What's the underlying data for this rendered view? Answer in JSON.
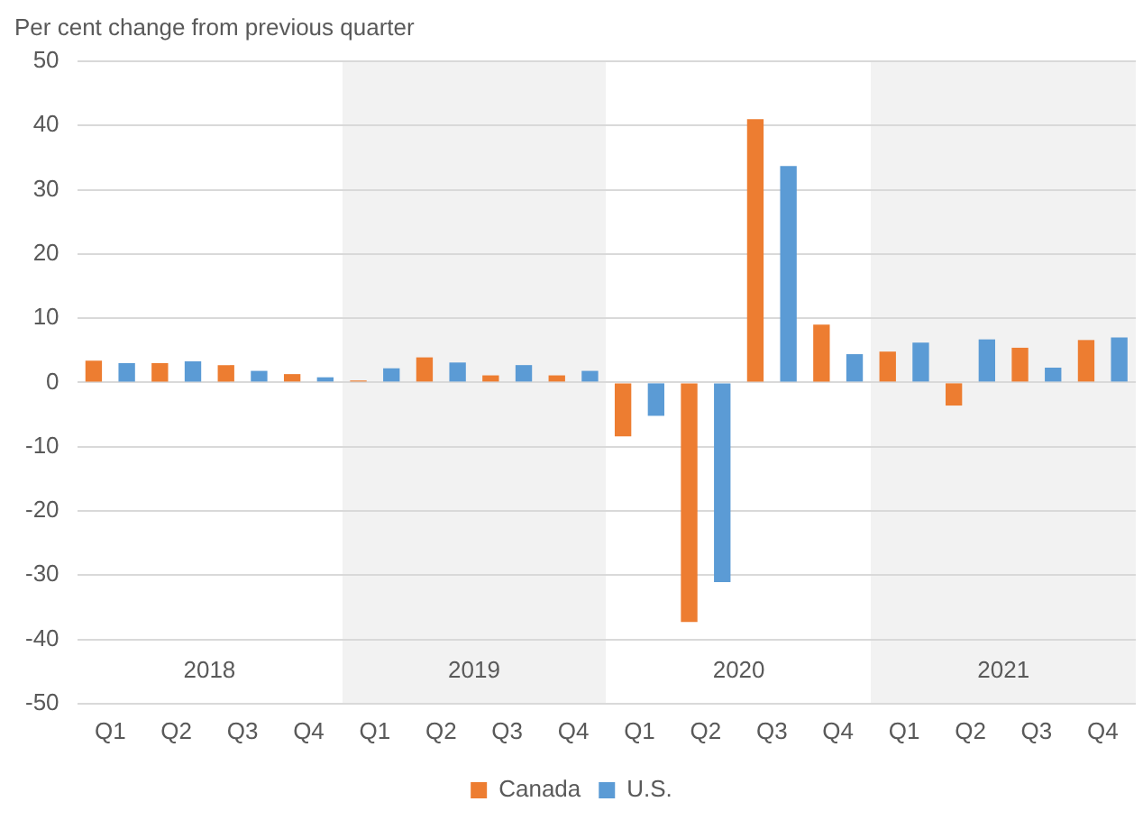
{
  "chart_data": {
    "type": "bar",
    "ylabel": "Per cent change from previous quarter",
    "categories": [
      "Q1",
      "Q2",
      "Q3",
      "Q4",
      "Q1",
      "Q2",
      "Q3",
      "Q4",
      "Q1",
      "Q2",
      "Q3",
      "Q4",
      "Q1",
      "Q2",
      "Q3",
      "Q4"
    ],
    "series": [
      {
        "name": "Canada",
        "color": "#ed7d31",
        "values": [
          3.4,
          3.0,
          2.7,
          1.3,
          0.3,
          3.9,
          1.1,
          1.1,
          -8.4,
          -37.3,
          41.0,
          9.0,
          4.8,
          -3.6,
          5.4,
          6.6
        ]
      },
      {
        "name": "U.S.",
        "color": "#5b9bd5",
        "values": [
          3.0,
          3.3,
          1.8,
          0.8,
          2.2,
          3.1,
          2.7,
          1.8,
          -5.2,
          -31.1,
          33.7,
          4.4,
          6.2,
          6.7,
          2.3,
          7.0
        ]
      }
    ],
    "annotations": [
      "2018",
      "2019",
      "2020",
      "2021"
    ],
    "ylim": [
      -50,
      50
    ],
    "yticks": [
      -50,
      -40,
      -30,
      -20,
      -10,
      0,
      10,
      20,
      30,
      40,
      50
    ],
    "grid": "y",
    "legend": "bottom"
  }
}
